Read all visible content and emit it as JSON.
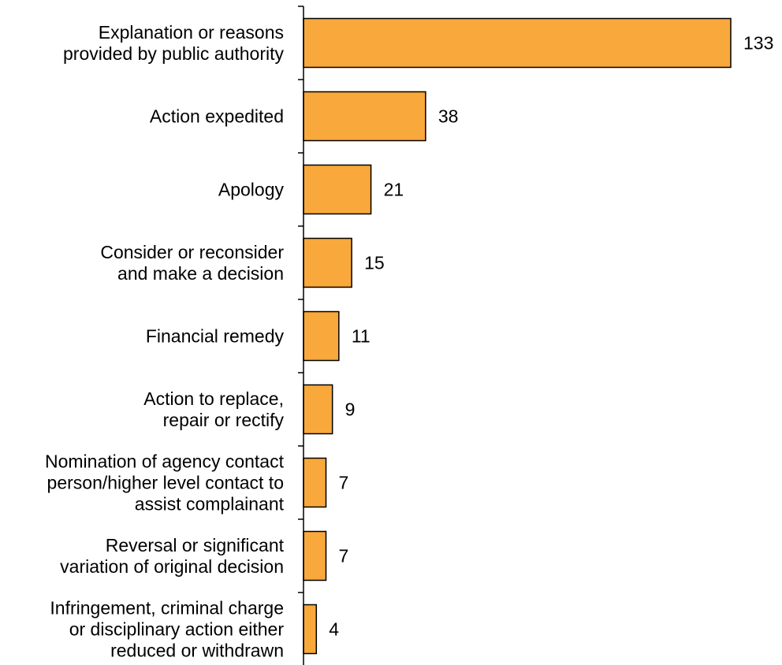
{
  "chart_data": {
    "type": "bar",
    "orientation": "horizontal",
    "categories": [
      [
        "Explanation or reasons",
        "provided by public authority"
      ],
      [
        "Action expedited"
      ],
      [
        "Apology"
      ],
      [
        "Consider or reconsider",
        "and make a decision"
      ],
      [
        "Financial remedy"
      ],
      [
        "Action to replace,",
        "repair or rectify"
      ],
      [
        "Nomination of agency contact",
        "person/higher level contact to",
        "assist complainant"
      ],
      [
        "Reversal or significant",
        "variation of original decision"
      ],
      [
        "Infringement, criminal charge",
        "or disciplinary action either",
        "reduced or withdrawn"
      ]
    ],
    "values": [
      133,
      38,
      21,
      15,
      11,
      9,
      7,
      7,
      4
    ],
    "data_labels": [
      "133",
      "38",
      "21",
      "15",
      "11",
      "9",
      "7",
      "7",
      "4"
    ],
    "xlim": [
      0,
      133
    ],
    "grid": false,
    "legend": "none",
    "bar_color": "#F9A83B",
    "bar_border_color": "#000000"
  }
}
